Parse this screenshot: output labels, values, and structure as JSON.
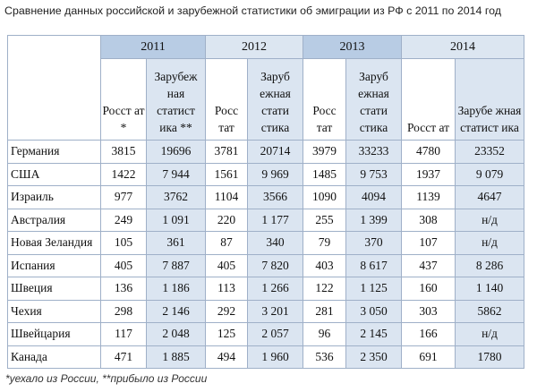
{
  "title": "Сравнение данных российской и зарубежной статистики об эмиграции из РФ с 2011 по 2014 год",
  "years": [
    "2011",
    "2012",
    "2013",
    "2014"
  ],
  "subheaders": [
    {
      "ros": "Росст ат *",
      "zar": "Зарубеж ная статист ика **"
    },
    {
      "ros": "Росс тат",
      "zar": "Заруб ежная стати стика"
    },
    {
      "ros": "Росс тат",
      "zar": "Заруб ежная стати стика"
    },
    {
      "ros": "Росст ат",
      "zar": "Зарубе жная статист ика"
    }
  ],
  "rows": [
    {
      "country": "Германия",
      "values": [
        "3815",
        "19696",
        "3781",
        "20714",
        "3979",
        "33233",
        "4780",
        "23352"
      ]
    },
    {
      "country": "США",
      "values": [
        "1422",
        "7 944",
        "1561",
        "9 969",
        "1485",
        "9 753",
        "1937",
        "9 079"
      ]
    },
    {
      "country": "Израиль",
      "values": [
        "977",
        "3762",
        "1104",
        "3566",
        "1090",
        "4094",
        "1139",
        "4647"
      ]
    },
    {
      "country": "Австралия",
      "values": [
        "249",
        "1 091",
        "220",
        "1 177",
        "255",
        "1 399",
        "308",
        "н/д"
      ]
    },
    {
      "country": "Новая Зеландия",
      "values": [
        "105",
        "361",
        "87",
        "340",
        "79",
        "370",
        "107",
        "н/д"
      ]
    },
    {
      "country": "Испания",
      "values": [
        "405",
        "7 887",
        "405",
        "7 820",
        "403",
        "8 617",
        "437",
        "8 286"
      ]
    },
    {
      "country": "Швеция",
      "values": [
        "136",
        "1 186",
        "113",
        "1 266",
        "122",
        "1 125",
        "160",
        "1 140"
      ]
    },
    {
      "country": "Чехия",
      "values": [
        "298",
        "2 146",
        "292",
        "3 201",
        "281",
        "3 050",
        "303",
        "5862"
      ]
    },
    {
      "country": "Швейцария",
      "values": [
        "117",
        "2 048",
        "125",
        "2 057",
        "96",
        "2 145",
        "166",
        "н/д"
      ]
    },
    {
      "country": "Канада",
      "values": [
        "471",
        "1 885",
        "494",
        "1 960",
        "536",
        "2 350",
        "691",
        "1780"
      ]
    }
  ],
  "footnote": "*уехало из России, **прибыло из России"
}
